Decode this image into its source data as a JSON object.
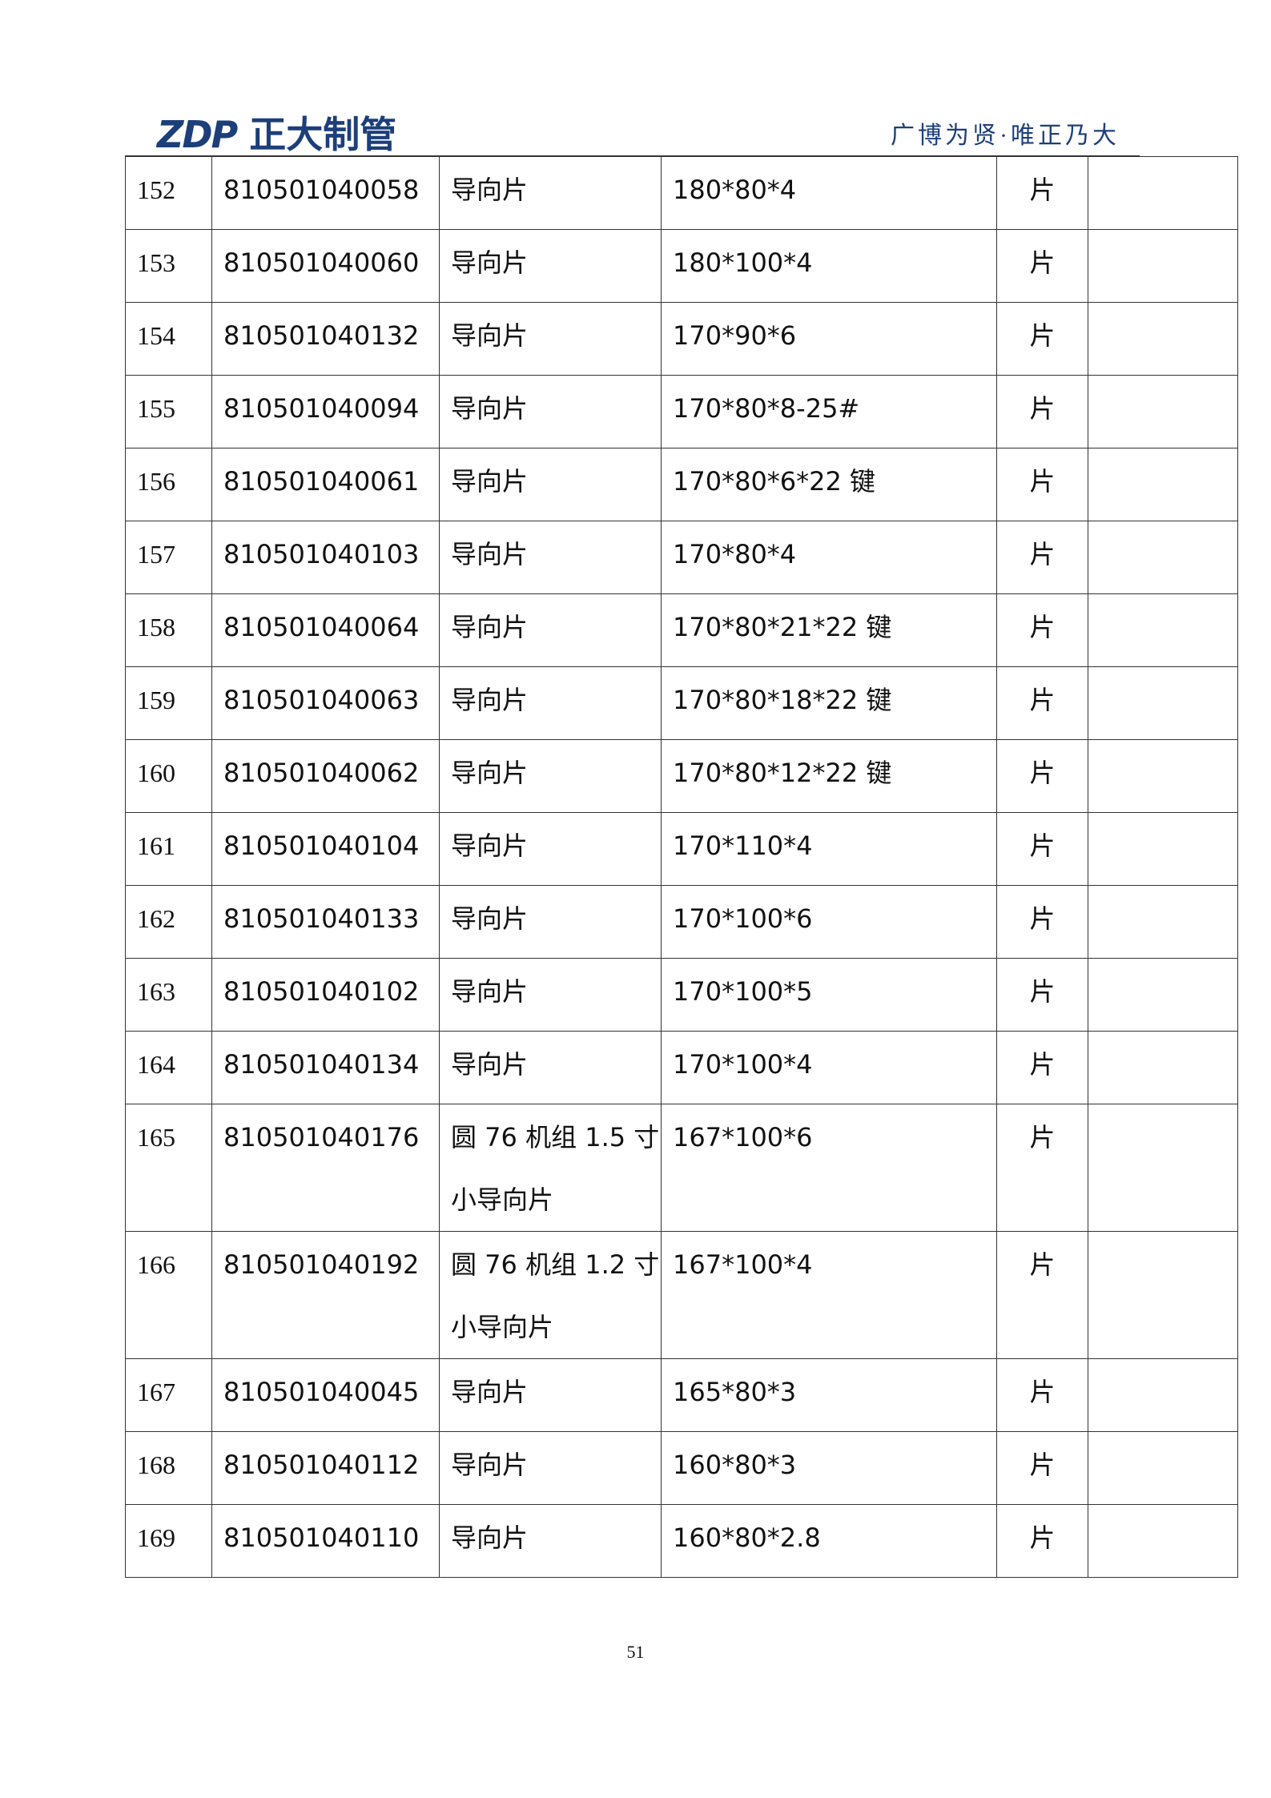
{
  "header": {
    "logo_mark": "ZDP",
    "company": "正大制管",
    "slogan": "广博为贤·唯正乃大"
  },
  "table": {
    "rows": [
      [
        "152",
        "810501040058",
        "导向片",
        "180*80*4",
        "片"
      ],
      [
        "153",
        "810501040060",
        "导向片",
        "180*100*4",
        "片"
      ],
      [
        "154",
        "810501040132",
        "导向片",
        "170*90*6",
        "片"
      ],
      [
        "155",
        "810501040094",
        "导向片",
        "170*80*8-25#",
        "片"
      ],
      [
        "156",
        "810501040061",
        "导向片",
        "170*80*6*22 键",
        "片"
      ],
      [
        "157",
        "810501040103",
        "导向片",
        "170*80*4",
        "片"
      ],
      [
        "158",
        "810501040064",
        "导向片",
        "170*80*21*22 键",
        "片"
      ],
      [
        "159",
        "810501040063",
        "导向片",
        "170*80*18*22 键",
        "片"
      ],
      [
        "160",
        "810501040062",
        "导向片",
        "170*80*12*22 键",
        "片"
      ],
      [
        "161",
        "810501040104",
        "导向片",
        "170*110*4",
        "片"
      ],
      [
        "162",
        "810501040133",
        "导向片",
        "170*100*6",
        "片"
      ],
      [
        "163",
        "810501040102",
        "导向片",
        "170*100*5",
        "片"
      ],
      [
        "164",
        "810501040134",
        "导向片",
        "170*100*4",
        "片"
      ],
      [
        "165",
        "810501040176",
        "圆 76 机组 1.5 寸小导向片",
        "167*100*6",
        "片"
      ],
      [
        "166",
        "810501040192",
        "圆 76 机组 1.2 寸小导向片",
        "167*100*4",
        "片"
      ],
      [
        "167",
        "810501040045",
        "导向片",
        "165*80*3",
        "片"
      ],
      [
        "168",
        "810501040112",
        "导向片",
        "160*80*3",
        "片"
      ],
      [
        "169",
        "810501040110",
        "导向片",
        "160*80*2.8",
        "片"
      ]
    ]
  },
  "footer": {
    "page_number": "51"
  }
}
